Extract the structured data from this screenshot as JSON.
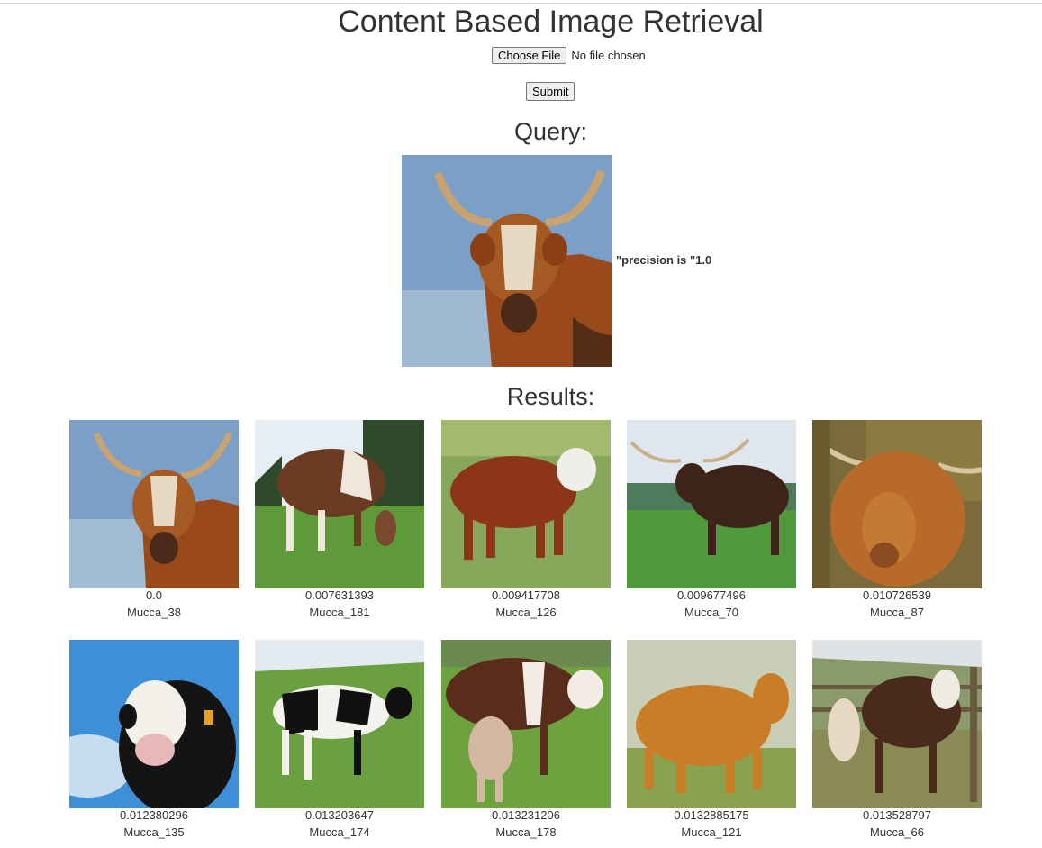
{
  "page": {
    "title": "Content Based Image Retrieval"
  },
  "upload": {
    "choose_file_label": "Choose File",
    "file_status": "No file chosen",
    "submit_label": "Submit"
  },
  "query": {
    "heading": "Query:",
    "precision_text": "\"precision is \"1.0"
  },
  "results": {
    "heading": "Results:",
    "items": [
      {
        "score": "0.0",
        "label": "Mucca_38"
      },
      {
        "score": "0.007631393",
        "label": "Mucca_181"
      },
      {
        "score": "0.009417708",
        "label": "Mucca_126"
      },
      {
        "score": "0.009677496",
        "label": "Mucca_70"
      },
      {
        "score": "0.010726539",
        "label": "Mucca_87"
      },
      {
        "score": "0.012380296",
        "label": "Mucca_135"
      },
      {
        "score": "0.013203647",
        "label": "Mucca_174"
      },
      {
        "score": "0.013231206",
        "label": "Mucca_178"
      },
      {
        "score": "0.0132885175",
        "label": "Mucca_121"
      },
      {
        "score": "0.013528797",
        "label": "Mucca_66"
      }
    ]
  }
}
